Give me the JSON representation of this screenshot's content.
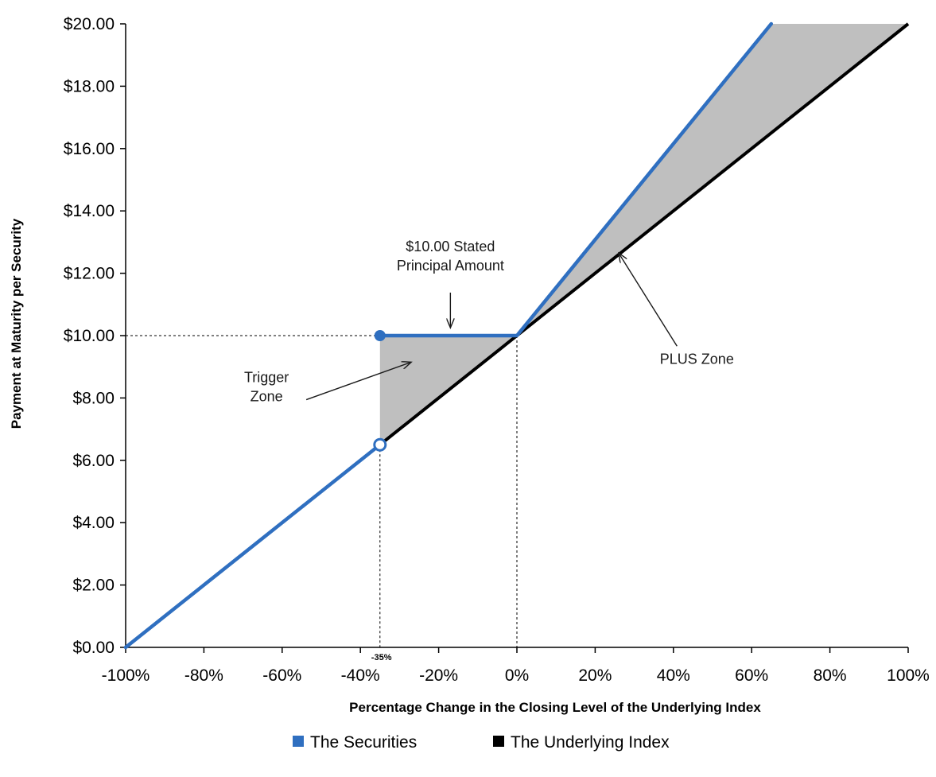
{
  "chart_data": {
    "type": "line",
    "title": "",
    "xlabel": "Percentage Change in the Closing Level of the Underlying Index",
    "ylabel": "Payment at Maturity per Security",
    "xlim": [
      -100,
      100
    ],
    "ylim": [
      0,
      20
    ],
    "x_ticks": [
      "-100%",
      "-80%",
      "-60%",
      "-40%",
      "-20%",
      "0%",
      "20%",
      "40%",
      "60%",
      "80%",
      "100%"
    ],
    "x_tick_values": [
      -100,
      -80,
      -60,
      -40,
      -20,
      0,
      20,
      40,
      60,
      80,
      100
    ],
    "y_ticks": [
      "$0.00",
      "$2.00",
      "$4.00",
      "$6.00",
      "$8.00",
      "$10.00",
      "$12.00",
      "$14.00",
      "$16.00",
      "$18.00",
      "$20.00"
    ],
    "y_tick_values": [
      0,
      2,
      4,
      6,
      8,
      10,
      12,
      14,
      16,
      18,
      20
    ],
    "grid": false,
    "legend_position": "bottom",
    "trigger_label": "-35%",
    "series": [
      {
        "name": "The Securities",
        "color": "#2f6fc0",
        "segments": [
          [
            [
              -100,
              0
            ],
            [
              -35,
              6.5
            ]
          ],
          [
            [
              -35,
              10
            ],
            [
              0,
              10
            ],
            [
              65,
              20
            ]
          ]
        ]
      },
      {
        "name": "The Underlying Index",
        "color": "#000000",
        "segments": [
          [
            [
              -35,
              6.5
            ],
            [
              100,
              20
            ]
          ]
        ]
      }
    ],
    "annotations": [
      {
        "text_lines": [
          "$10.00 Stated",
          "Principal Amount"
        ],
        "data_xy": [
          -17,
          12.4
        ],
        "arrow_to": [
          -17,
          10.25
        ]
      },
      {
        "text_lines": [
          "Trigger",
          "Zone"
        ],
        "data_xy": [
          -64,
          8.2
        ],
        "arrow_to": [
          -27,
          9.15
        ]
      },
      {
        "text_lines": [
          "PLUS Zone"
        ],
        "data_xy": [
          46,
          9.1
        ],
        "arrow_to": [
          26,
          12.65
        ]
      }
    ]
  }
}
